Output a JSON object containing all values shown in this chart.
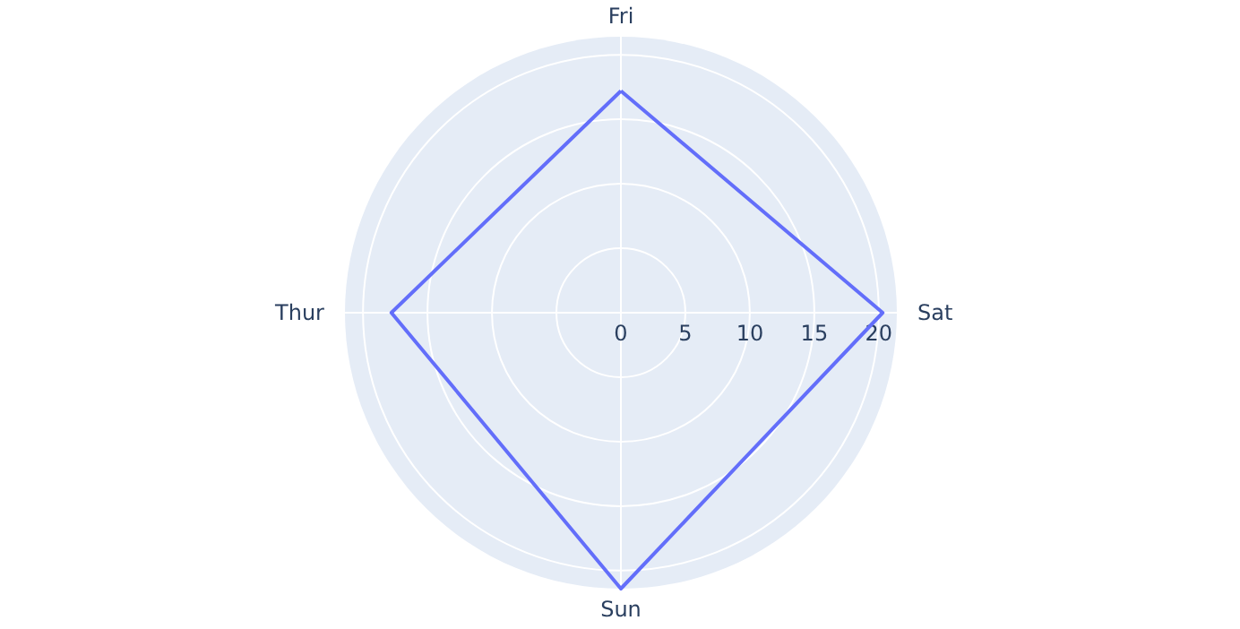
{
  "chart_data": {
    "type": "radar",
    "categories": [
      "Fri",
      "Sat",
      "Sun",
      "Thur"
    ],
    "series": [
      {
        "color": "#636efa",
        "values": [
          17.2,
          20.3,
          21.4,
          17.8
        ]
      }
    ],
    "ylim": [
      0,
      21.4
    ],
    "yticks": [
      0,
      5,
      10,
      15,
      20
    ],
    "grid": true,
    "line_style": "solid",
    "marker": "none"
  }
}
